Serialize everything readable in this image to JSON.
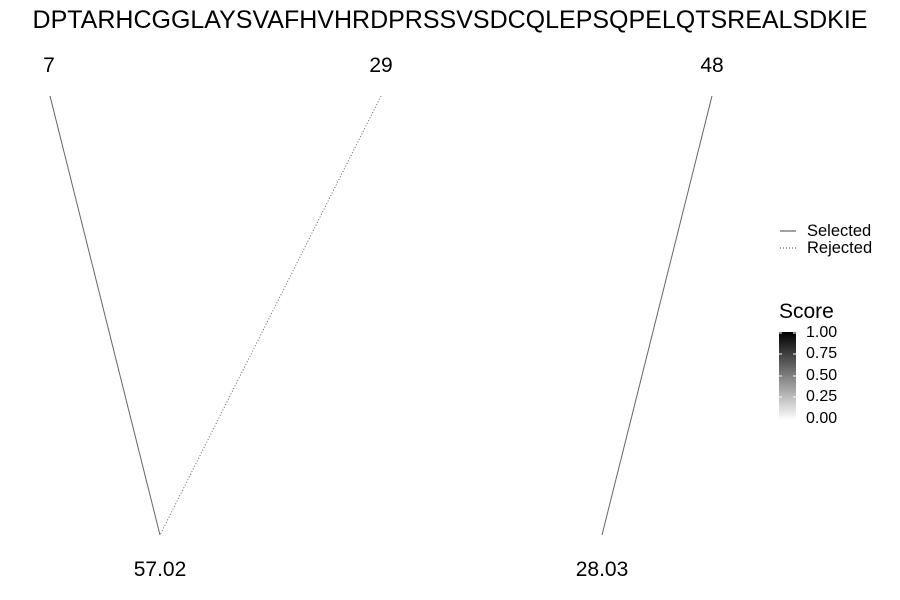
{
  "chart_data": {
    "type": "diagram",
    "sequence": "DPTARHCGGLAYSVAFHVHRDPRSSVSDCQLEPSQPELQTSREALSDKIE",
    "positions": [
      "7",
      "29",
      "48"
    ],
    "scores": [
      "57.02",
      "28.03"
    ],
    "links": [
      {
        "from": "7",
        "to": "57.02",
        "status": "Selected"
      },
      {
        "from": "29",
        "to": "57.02",
        "status": "Rejected"
      },
      {
        "from": "48",
        "to": "28.03",
        "status": "Selected"
      }
    ],
    "legend": {
      "line_types": [
        "Selected",
        "Rejected"
      ],
      "gradient_title": "Score",
      "gradient_ticks": [
        "1.00",
        "0.75",
        "0.50",
        "0.25",
        "0.00"
      ],
      "gradient_colors": [
        "#000000",
        "#ffffff"
      ]
    },
    "line_color": "#666666"
  }
}
